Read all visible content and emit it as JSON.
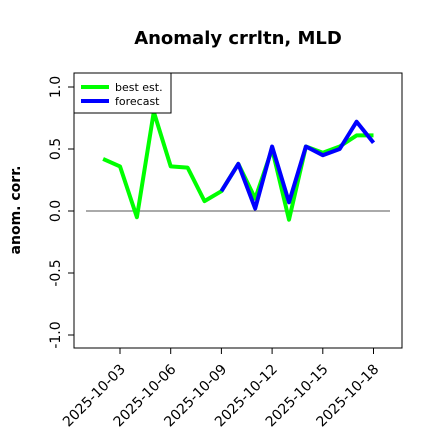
{
  "chart_data": {
    "type": "line",
    "title": "Anomaly crrltn, MLD",
    "xlabel": "",
    "ylabel": "anom. corr.",
    "ylim": [
      -1.0,
      1.0
    ],
    "yticks": [
      -1.0,
      -0.5,
      0.0,
      0.5,
      1.0
    ],
    "ytick_labels": [
      "-1.0",
      "-0.5",
      "0.0",
      "0.5",
      "1.0"
    ],
    "xticks": [
      "2025-10-03",
      "2025-10-06",
      "2025-10-09",
      "2025-10-12",
      "2025-10-15",
      "2025-10-18"
    ],
    "highlight_tick": "2025-10-09",
    "highlight_color": "#228B22",
    "reference_line": 0.0,
    "legend": {
      "position": "top-left"
    },
    "series": [
      {
        "name": "best est.",
        "color": "#00ff00",
        "x": [
          "2025-10-02",
          "2025-10-03",
          "2025-10-04",
          "2025-10-05",
          "2025-10-06",
          "2025-10-07",
          "2025-10-08",
          "2025-10-09",
          "2025-10-10",
          "2025-10-11",
          "2025-10-12",
          "2025-10-13",
          "2025-10-14",
          "2025-10-15",
          "2025-10-16",
          "2025-10-17",
          "2025-10-18"
        ],
        "y": [
          0.42,
          0.36,
          -0.05,
          0.8,
          0.36,
          0.35,
          0.08,
          0.16,
          0.38,
          0.1,
          0.5,
          -0.07,
          0.52,
          0.47,
          0.52,
          0.61,
          0.61
        ]
      },
      {
        "name": "forecast",
        "color": "#0000ff",
        "x": [
          "2025-10-09",
          "2025-10-10",
          "2025-10-11",
          "2025-10-12",
          "2025-10-13",
          "2025-10-14",
          "2025-10-15",
          "2025-10-16",
          "2025-10-17",
          "2025-10-18"
        ],
        "y": [
          0.16,
          0.38,
          0.02,
          0.52,
          0.07,
          0.52,
          0.45,
          0.5,
          0.72,
          0.55
        ]
      }
    ]
  }
}
